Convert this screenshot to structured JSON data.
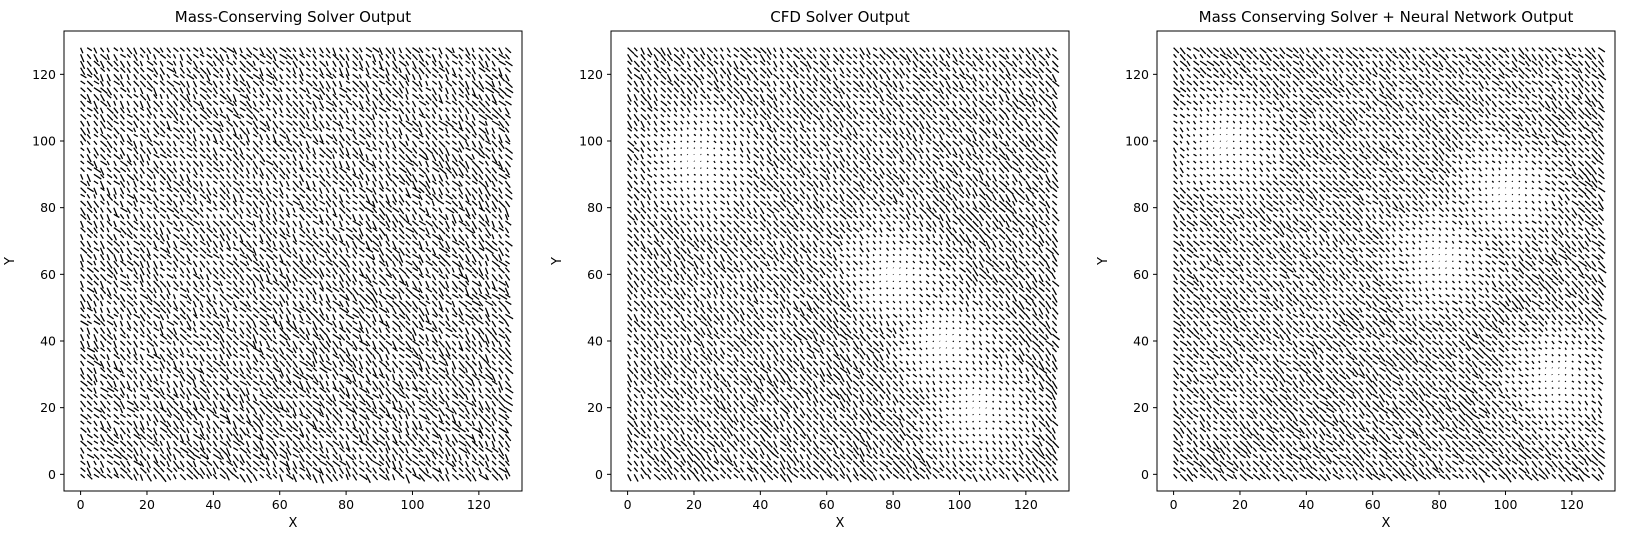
{
  "chart_data": [
    {
      "type": "quiver",
      "title": "Mass-Conserving Solver Output",
      "xlabel": "X",
      "ylabel": "Y",
      "xlim": [
        -5,
        133
      ],
      "ylim": [
        -5,
        133
      ],
      "xticks": [
        0,
        20,
        40,
        60,
        80,
        100,
        120
      ],
      "yticks": [
        0,
        20,
        40,
        60,
        80,
        100,
        120
      ],
      "grid": false,
      "field": {
        "domain": [
          0,
          128
        ],
        "dominant_direction_deg": -50,
        "disorder": "high",
        "low_magnitude_regions": []
      }
    },
    {
      "type": "quiver",
      "title": "CFD Solver Output",
      "xlabel": "X",
      "ylabel": "Y",
      "xlim": [
        -5,
        133
      ],
      "ylim": [
        -5,
        133
      ],
      "xticks": [
        0,
        20,
        40,
        60,
        80,
        100,
        120
      ],
      "yticks": [
        0,
        20,
        40,
        60,
        80,
        100,
        120
      ],
      "grid": false,
      "field": {
        "domain": [
          0,
          128
        ],
        "dominant_direction_deg": -50,
        "disorder": "medium",
        "low_magnitude_regions": [
          [
            20,
            95
          ],
          [
            80,
            60
          ],
          [
            95,
            40
          ],
          [
            105,
            20
          ]
        ]
      }
    },
    {
      "type": "quiver",
      "title": "Mass Conserving Solver + Neural Network Output",
      "xlabel": "X",
      "ylabel": "Y",
      "xlim": [
        -5,
        133
      ],
      "ylim": [
        -5,
        133
      ],
      "xticks": [
        0,
        20,
        40,
        60,
        80,
        100,
        120
      ],
      "yticks": [
        0,
        20,
        40,
        60,
        80,
        100,
        120
      ],
      "grid": false,
      "field": {
        "domain": [
          0,
          128
        ],
        "dominant_direction_deg": -45,
        "disorder": "medium",
        "low_magnitude_regions": [
          [
            15,
            100
          ],
          [
            80,
            65
          ],
          [
            100,
            85
          ],
          [
            115,
            30
          ]
        ]
      }
    }
  ]
}
